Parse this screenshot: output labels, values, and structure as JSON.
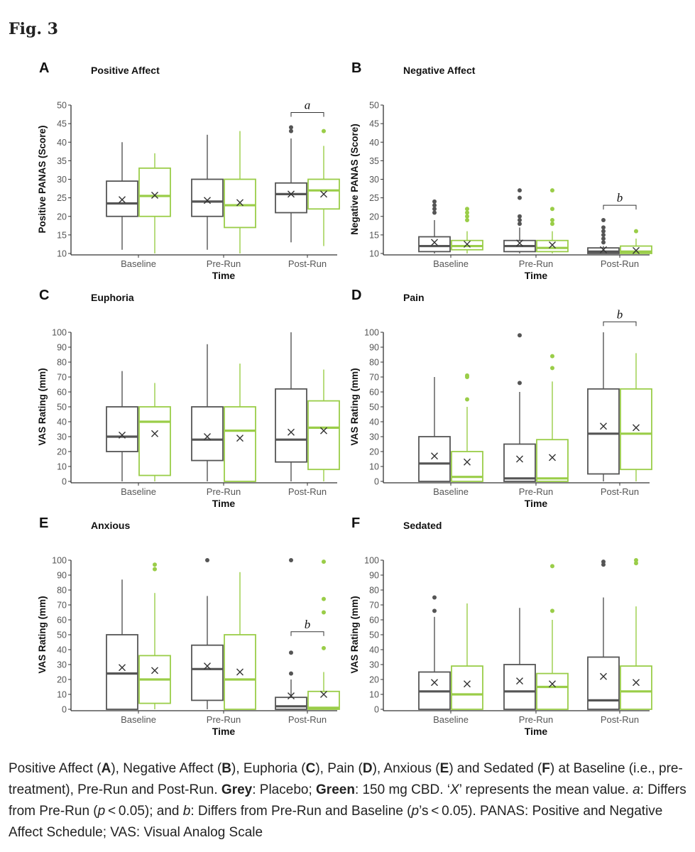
{
  "figure_label": "Fig. 3",
  "colors": {
    "placebo": "#555555",
    "cbd": "#9acd48",
    "axis": "#333333"
  },
  "legend": {
    "placebo": "Grey: Placebo",
    "cbd": "Green: 150 mg CBD"
  },
  "caption": {
    "t1": "Positive Affect (",
    "A": "A",
    "t2": "), Negative Affect (",
    "B": "B",
    "t3": "), Euphoria (",
    "C": "C",
    "t4": "), Pain (",
    "D": "D",
    "t5": "), Anxious (",
    "E": "E",
    "t6": ") and Sedated (",
    "F": "F",
    "t7": ") at Baseline (i.e., pre-treatment), Pre-Run and Post-Run. ",
    "grey": "Grey",
    "t8": ": Placebo; ",
    "green": "Green",
    "t9": ": 150 mg CBD. ‘",
    "X": "X",
    "t10": "’ represents the mean value. ",
    "a": "a",
    "t11": ": Differs from Pre-Run (",
    "p1": "p",
    "t12": " < 0.05); and ",
    "b": "b",
    "t13": ": Differs from Pre-Run and Baseline (",
    "p2": "p",
    "t14": "’s < 0.05). PANAS: Positive and Negative Affect Schedule; VAS: Visual Analog Scale"
  },
  "chart_data": [
    {
      "letter": "A",
      "title": "Positive Affect",
      "type": "box",
      "ylabel": "Positive PANAS (Score)",
      "xlabel": "Time",
      "ylim": [
        10,
        50
      ],
      "yticks": [
        10,
        15,
        20,
        25,
        30,
        35,
        40,
        45,
        50
      ],
      "categories": [
        "Baseline",
        "Pre-Run",
        "Post-Run"
      ],
      "series": [
        {
          "name": "Placebo",
          "color": "#555555",
          "boxes": [
            {
              "min": 11,
              "q1": 20,
              "median": 23.5,
              "q3": 29.5,
              "max": 40,
              "mean": 24.5,
              "outliers": []
            },
            {
              "min": 11,
              "q1": 20,
              "median": 24,
              "q3": 30,
              "max": 42,
              "mean": 24.3,
              "outliers": []
            },
            {
              "min": 13,
              "q1": 21,
              "median": 26,
              "q3": 29,
              "max": 41,
              "mean": 26,
              "outliers": [
                43,
                44
              ]
            }
          ]
        },
        {
          "name": "150 mg CBD",
          "color": "#9acd48",
          "boxes": [
            {
              "min": 10,
              "q1": 20,
              "median": 25.5,
              "q3": 33,
              "max": 37,
              "mean": 25.7,
              "outliers": []
            },
            {
              "min": 10,
              "q1": 17,
              "median": 23,
              "q3": 30,
              "max": 43,
              "mean": 23.7,
              "outliers": []
            },
            {
              "min": 12,
              "q1": 22,
              "median": 27,
              "q3": 30,
              "max": 39,
              "mean": 26,
              "outliers": [
                43
              ]
            }
          ]
        }
      ],
      "annotation": {
        "text": "a",
        "category": 2,
        "y": 48
      }
    },
    {
      "letter": "B",
      "title": "Negative Affect",
      "type": "box",
      "ylabel": "Negative PANAS (Score)",
      "xlabel": "Time",
      "ylim": [
        10,
        50
      ],
      "yticks": [
        10,
        15,
        20,
        25,
        30,
        35,
        40,
        45,
        50
      ],
      "categories": [
        "Baseline",
        "Pre-Run",
        "Post-Run"
      ],
      "series": [
        {
          "name": "Placebo",
          "color": "#555555",
          "boxes": [
            {
              "min": 10,
              "q1": 10.5,
              "median": 12,
              "q3": 14.5,
              "max": 19,
              "mean": 13,
              "outliers": [
                21,
                22,
                23,
                24
              ]
            },
            {
              "min": 10,
              "q1": 10.5,
              "median": 12,
              "q3": 13.5,
              "max": 17,
              "mean": 12.8,
              "outliers": [
                18,
                19,
                20,
                25,
                27
              ]
            },
            {
              "min": 10,
              "q1": 10,
              "median": 10.5,
              "q3": 11.5,
              "max": 12,
              "mean": 11,
              "outliers": [
                13,
                14,
                15,
                16,
                17,
                19
              ]
            }
          ]
        },
        {
          "name": "150 mg CBD",
          "color": "#9acd48",
          "boxes": [
            {
              "min": 10,
              "q1": 11,
              "median": 12,
              "q3": 13.5,
              "max": 16,
              "mean": 12.5,
              "outliers": [
                19,
                20,
                21,
                22
              ]
            },
            {
              "min": 10,
              "q1": 10.5,
              "median": 11.5,
              "q3": 13.5,
              "max": 16,
              "mean": 12.3,
              "outliers": [
                18,
                19,
                22,
                27
              ]
            },
            {
              "min": 10,
              "q1": 10,
              "median": 10.5,
              "q3": 12,
              "max": 14,
              "mean": 10.8,
              "outliers": [
                16
              ]
            }
          ]
        }
      ],
      "annotation": {
        "text": "b",
        "category": 2,
        "y": 23
      }
    },
    {
      "letter": "C",
      "title": "Euphoria",
      "type": "box",
      "ylabel": "VAS Rating (mm)",
      "xlabel": "Time",
      "ylim": [
        0,
        100
      ],
      "yticks": [
        0,
        10,
        20,
        30,
        40,
        50,
        60,
        70,
        80,
        90,
        100
      ],
      "categories": [
        "Baseline",
        "Pre-Run",
        "Post-Run"
      ],
      "series": [
        {
          "name": "Placebo",
          "color": "#555555",
          "boxes": [
            {
              "min": 0,
              "q1": 20,
              "median": 30,
              "q3": 50,
              "max": 74,
              "mean": 31,
              "outliers": []
            },
            {
              "min": 0,
              "q1": 14,
              "median": 28,
              "q3": 50,
              "max": 92,
              "mean": 30,
              "outliers": []
            },
            {
              "min": 0,
              "q1": 13,
              "median": 28,
              "q3": 62,
              "max": 100,
              "mean": 33,
              "outliers": []
            }
          ]
        },
        {
          "name": "150 mg CBD",
          "color": "#9acd48",
          "boxes": [
            {
              "min": 0,
              "q1": 4,
              "median": 40,
              "q3": 50,
              "max": 66,
              "mean": 32,
              "outliers": []
            },
            {
              "min": 0,
              "q1": 0,
              "median": 34,
              "q3": 50,
              "max": 79,
              "mean": 29,
              "outliers": []
            },
            {
              "min": 0,
              "q1": 8,
              "median": 36,
              "q3": 54,
              "max": 75,
              "mean": 34,
              "outliers": []
            }
          ]
        }
      ],
      "annotation": null
    },
    {
      "letter": "D",
      "title": "Pain",
      "type": "box",
      "ylabel": "VAS Rating (mm)",
      "xlabel": "Time",
      "ylim": [
        0,
        100
      ],
      "yticks": [
        0,
        10,
        20,
        30,
        40,
        50,
        60,
        70,
        80,
        90,
        100
      ],
      "categories": [
        "Baseline",
        "Pre-Run",
        "Post-Run"
      ],
      "series": [
        {
          "name": "Placebo",
          "color": "#555555",
          "boxes": [
            {
              "min": 0,
              "q1": 0,
              "median": 12,
              "q3": 30,
              "max": 70,
              "mean": 17,
              "outliers": []
            },
            {
              "min": 0,
              "q1": 0,
              "median": 2,
              "q3": 25,
              "max": 60,
              "mean": 15,
              "outliers": [
                66,
                98
              ]
            },
            {
              "min": 0,
              "q1": 5,
              "median": 32,
              "q3": 62,
              "max": 100,
              "mean": 37,
              "outliers": []
            }
          ]
        },
        {
          "name": "150 mg CBD",
          "color": "#9acd48",
          "boxes": [
            {
              "min": 0,
              "q1": 0,
              "median": 3,
              "q3": 20,
              "max": 50,
              "mean": 13,
              "outliers": [
                55,
                70,
                71
              ]
            },
            {
              "min": 0,
              "q1": 0,
              "median": 2,
              "q3": 28,
              "max": 67,
              "mean": 16,
              "outliers": [
                76,
                84
              ]
            },
            {
              "min": 0,
              "q1": 8,
              "median": 32,
              "q3": 62,
              "max": 86,
              "mean": 36,
              "outliers": []
            }
          ]
        }
      ],
      "annotation": {
        "text": "b",
        "category": 2,
        "y": 107
      }
    },
    {
      "letter": "E",
      "title": "Anxious",
      "type": "box",
      "ylabel": "VAS Rating (mm)",
      "xlabel": "Time",
      "ylim": [
        0,
        100
      ],
      "yticks": [
        0,
        10,
        20,
        30,
        40,
        50,
        60,
        70,
        80,
        90,
        100
      ],
      "categories": [
        "Baseline",
        "Pre-Run",
        "Post-Run"
      ],
      "series": [
        {
          "name": "Placebo",
          "color": "#555555",
          "boxes": [
            {
              "min": 0,
              "q1": 0,
              "median": 24,
              "q3": 50,
              "max": 87,
              "mean": 28,
              "outliers": []
            },
            {
              "min": 0,
              "q1": 6,
              "median": 27,
              "q3": 43,
              "max": 76,
              "mean": 29,
              "outliers": [
                100
              ]
            },
            {
              "min": 0,
              "q1": 0,
              "median": 2,
              "q3": 8,
              "max": 20,
              "mean": 9,
              "outliers": [
                24,
                38,
                100
              ]
            }
          ]
        },
        {
          "name": "150 mg CBD",
          "color": "#9acd48",
          "boxes": [
            {
              "min": 0,
              "q1": 4,
              "median": 20,
              "q3": 36,
              "max": 78,
              "mean": 26,
              "outliers": [
                94,
                97
              ]
            },
            {
              "min": 0,
              "q1": 0,
              "median": 20,
              "q3": 50,
              "max": 92,
              "mean": 25,
              "outliers": []
            },
            {
              "min": 0,
              "q1": 0,
              "median": 1,
              "q3": 12,
              "max": 25,
              "mean": 10,
              "outliers": [
                41,
                65,
                74,
                99
              ]
            }
          ]
        }
      ],
      "annotation": {
        "text": "b",
        "category": 2,
        "y": 52
      }
    },
    {
      "letter": "F",
      "title": "Sedated",
      "type": "box",
      "ylabel": "VAS Rating (mm)",
      "xlabel": "Time",
      "ylim": [
        0,
        100
      ],
      "yticks": [
        0,
        10,
        20,
        30,
        40,
        50,
        60,
        70,
        80,
        90,
        100
      ],
      "categories": [
        "Baseline",
        "Pre-Run",
        "Post-Run"
      ],
      "series": [
        {
          "name": "Placebo",
          "color": "#555555",
          "boxes": [
            {
              "min": 0,
              "q1": 0,
              "median": 12,
              "q3": 25,
              "max": 62,
              "mean": 18,
              "outliers": [
                66,
                75
              ]
            },
            {
              "min": 0,
              "q1": 0,
              "median": 12,
              "q3": 30,
              "max": 68,
              "mean": 19,
              "outliers": []
            },
            {
              "min": 0,
              "q1": 0,
              "median": 6,
              "q3": 35,
              "max": 75,
              "mean": 22,
              "outliers": [
                97,
                99
              ]
            }
          ]
        },
        {
          "name": "150 mg CBD",
          "color": "#9acd48",
          "boxes": [
            {
              "min": 0,
              "q1": 0,
              "median": 10,
              "q3": 29,
              "max": 71,
              "mean": 17,
              "outliers": []
            },
            {
              "min": 0,
              "q1": 0,
              "median": 15,
              "q3": 24,
              "max": 60,
              "mean": 17,
              "outliers": [
                66,
                96
              ]
            },
            {
              "min": 0,
              "q1": 0,
              "median": 12,
              "q3": 29,
              "max": 69,
              "mean": 18,
              "outliers": [
                98,
                100
              ]
            }
          ]
        }
      ],
      "annotation": null
    }
  ]
}
